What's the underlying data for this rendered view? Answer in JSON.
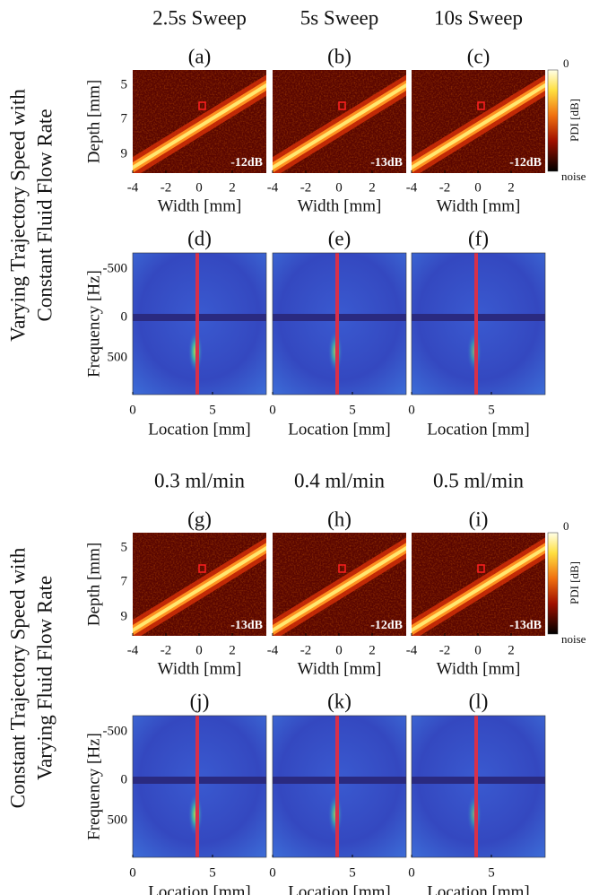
{
  "groups": [
    {
      "side_label": [
        "Varying Trajectory Speed with",
        "Constant Fluid Flow Rate"
      ],
      "columns": [
        {
          "title": "2.5s Sweep",
          "pdi_label": "(a)",
          "db": "-12dB",
          "spectrum_label": "(d)"
        },
        {
          "title": "5s Sweep",
          "pdi_label": "(b)",
          "db": "-13dB",
          "spectrum_label": "(e)"
        },
        {
          "title": "10s Sweep",
          "pdi_label": "(c)",
          "db": "-12dB",
          "spectrum_label": "(f)"
        }
      ]
    },
    {
      "side_label": [
        "Constant Trajectory Speed with",
        "Varying Fluid Flow Rate"
      ],
      "columns": [
        {
          "title": "0.3 ml/min",
          "pdi_label": "(g)",
          "db": "-13dB",
          "spectrum_label": "(j)"
        },
        {
          "title": "0.4 ml/min",
          "pdi_label": "(h)",
          "db": "-12dB",
          "spectrum_label": "(k)"
        },
        {
          "title": "0.5 ml/min",
          "pdi_label": "(i)",
          "db": "-13dB",
          "spectrum_label": "(l)"
        }
      ]
    }
  ],
  "pdi_axes": {
    "ylabel": "Depth [mm]",
    "yticks": [
      "5",
      "7",
      "9"
    ],
    "xlabel": "Width [mm]",
    "xticks": [
      "-4",
      "-2",
      "0",
      "2"
    ]
  },
  "colorbar": {
    "label": "PDI [dB]",
    "top": "0",
    "bottom": "noise"
  },
  "spectrum_axes": {
    "ylabel": "Frequency [Hz]",
    "yticks": [
      "-500",
      "0",
      "500"
    ],
    "xlabel": "Location [mm]",
    "xticks": [
      "0",
      "5"
    ]
  }
}
